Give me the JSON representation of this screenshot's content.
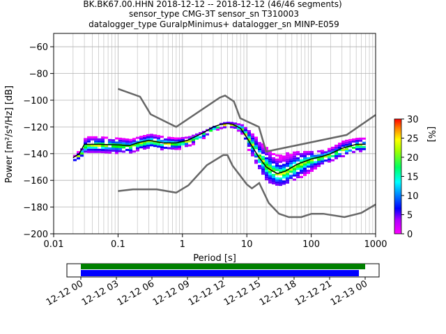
{
  "title_lines": [
    "BK.BK67.00.HHN   2018-12-12 -- 2018-12-12  (46/46 segments)",
    "sensor_type CMG-3T sensor_sn T310003",
    "datalogger_type GuralpMinimus+ datalogger_sn MINP-E059"
  ],
  "chart_data": {
    "type": "heatmap",
    "xlabel": "Period [s]",
    "ylabel": "Power [m²/s⁴/Hz] [dB]",
    "x_scale": "log",
    "xlim": [
      0.01,
      1000
    ],
    "ylim": [
      -200,
      -50
    ],
    "x_ticks": [
      0.01,
      0.1,
      1,
      10,
      100,
      1000
    ],
    "x_tick_labels": [
      "0.01",
      "0.1",
      "1",
      "10",
      "100",
      "1000"
    ],
    "y_ticks": [
      -200,
      -180,
      -160,
      -140,
      -120,
      -100,
      -80,
      -60
    ],
    "y_tick_labels": [
      "−200",
      "−180",
      "−160",
      "−140",
      "−120",
      "−100",
      "−80",
      "−60"
    ],
    "grid": true,
    "colorbar": {
      "label": "[%]",
      "range": [
        0,
        30
      ],
      "ticks": [
        0,
        5,
        10,
        15,
        20,
        25,
        30
      ],
      "tick_labels": [
        "0",
        "5",
        "10",
        "15",
        "20",
        "25",
        "30"
      ]
    },
    "noise_models": {
      "high": {
        "period": [
          0.1,
          0.22,
          0.32,
          0.8,
          3.8,
          4.6,
          6.3,
          7.9,
          15.4,
          20,
          354.8,
          1000
        ],
        "power_db": [
          -91.5,
          -97.4,
          -110.5,
          -120,
          -98,
          -96.5,
          -101,
          -113.5,
          -120,
          -138.5,
          -126,
          -111
        ]
      },
      "low": {
        "period": [
          0.1,
          0.17,
          0.4,
          0.8,
          1.24,
          2.4,
          4.3,
          5.0,
          6.0,
          10.0,
          12.0,
          15.6,
          21.9,
          31.6,
          45,
          70,
          101,
          154,
          328,
          600,
          1000
        ],
        "power_db": [
          -168,
          -166.7,
          -166.7,
          -169.2,
          -163.7,
          -148.6,
          -141.1,
          -141.1,
          -149,
          -163,
          -166,
          -162,
          -177,
          -185,
          -187.5,
          -187.5,
          -185,
          -185,
          -187.5,
          -184.4,
          -178
        ]
      }
    },
    "median_curve": {
      "period": [
        0.02,
        0.025,
        0.03,
        0.05,
        0.1,
        0.15,
        0.2,
        0.3,
        0.5,
        0.8,
        1.2,
        2,
        3,
        4,
        5,
        6,
        8,
        10,
        15,
        20,
        25,
        30,
        40,
        60,
        100,
        150,
        200,
        300,
        500,
        700
      ],
      "power_db": [
        -143,
        -140,
        -133,
        -133,
        -133.5,
        -134,
        -132,
        -130,
        -132,
        -132,
        -130,
        -125,
        -120,
        -118,
        -117.5,
        -118,
        -121,
        -128,
        -142,
        -150,
        -153,
        -155,
        -153,
        -148,
        -144,
        -142,
        -140,
        -136,
        -133,
        -133
      ]
    },
    "pdf_band": {
      "period": [
        0.02,
        0.025,
        0.03,
        0.05,
        0.1,
        0.15,
        0.2,
        0.3,
        0.5,
        0.8,
        1.2,
        2,
        3,
        4,
        5,
        6,
        8,
        10,
        15,
        20,
        25,
        30,
        40,
        60,
        100,
        150,
        200,
        300,
        500,
        700
      ],
      "upper_db": [
        -141,
        -136,
        -127,
        -127,
        -128,
        -129,
        -127,
        -125,
        -127,
        -128,
        -127,
        -123,
        -119,
        -116.5,
        -116,
        -116.5,
        -118,
        -122,
        -130,
        -136,
        -140,
        -141,
        -139,
        -138,
        -138,
        -137,
        -135,
        -130,
        -128,
        -128
      ],
      "lower_db": [
        -145,
        -143,
        -138,
        -139,
        -139,
        -139,
        -137,
        -136,
        -137,
        -136,
        -134,
        -128,
        -122,
        -120,
        -119,
        -120,
        -125,
        -136,
        -152,
        -160,
        -163,
        -163,
        -161,
        -158,
        -152,
        -147,
        -145,
        -141,
        -138,
        -138
      ]
    }
  },
  "timeline": {
    "tick_labels": [
      "12-12 00",
      "12-12 03",
      "12-12 06",
      "12-12 09",
      "12-12 12",
      "12-12 15",
      "12-12 18",
      "12-12 21",
      "12-13 00"
    ],
    "data_coverage_color": "#008000",
    "psd_coverage_color": "#0000ff"
  }
}
